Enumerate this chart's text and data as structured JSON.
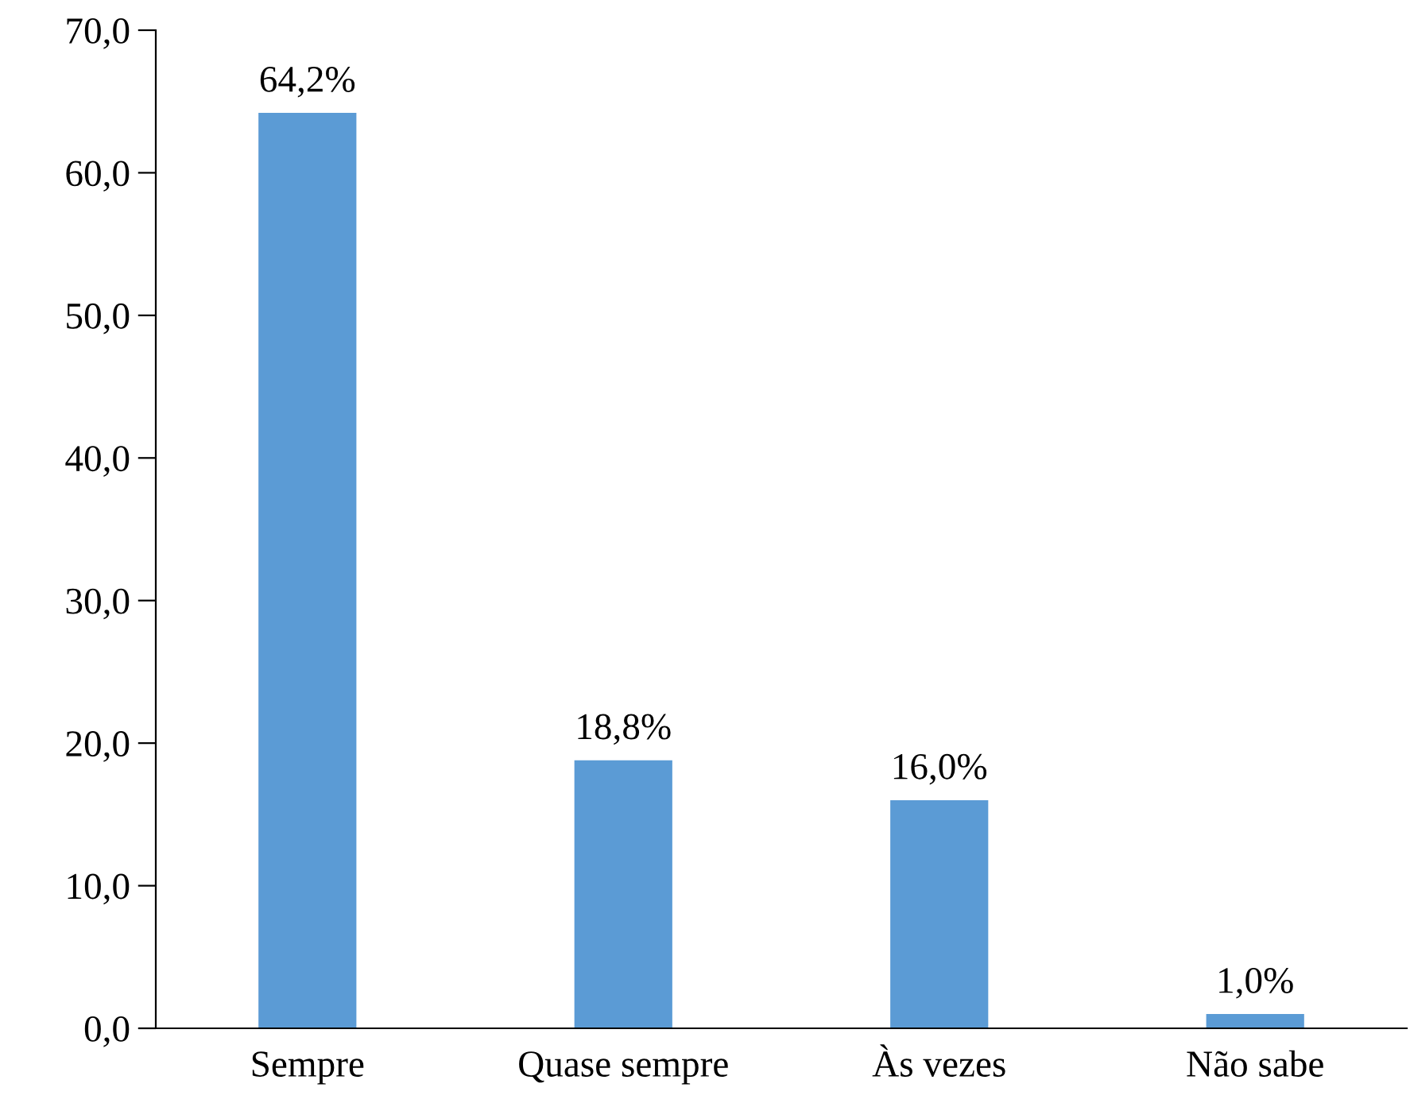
{
  "chart_data": {
    "type": "bar",
    "categories": [
      "Sempre",
      "Quase sempre",
      "Às vezes",
      "Não sabe"
    ],
    "values": [
      64.2,
      18.8,
      16.0,
      1.0
    ],
    "value_labels": [
      "64,2%",
      "18,8%",
      "16,0%",
      "1,0%"
    ],
    "color": "#5b9bd5",
    "ylim": [
      0,
      70
    ],
    "yticks": [
      {
        "value": 0,
        "label": "0,0"
      },
      {
        "value": 10,
        "label": "10,0"
      },
      {
        "value": 20,
        "label": "20,0"
      },
      {
        "value": 30,
        "label": "30,0"
      },
      {
        "value": 40,
        "label": "40,0"
      },
      {
        "value": 50,
        "label": "50,0"
      },
      {
        "value": 60,
        "label": "60,0"
      },
      {
        "value": 70,
        "label": "70,0"
      }
    ],
    "grid": false,
    "legend": false
  }
}
